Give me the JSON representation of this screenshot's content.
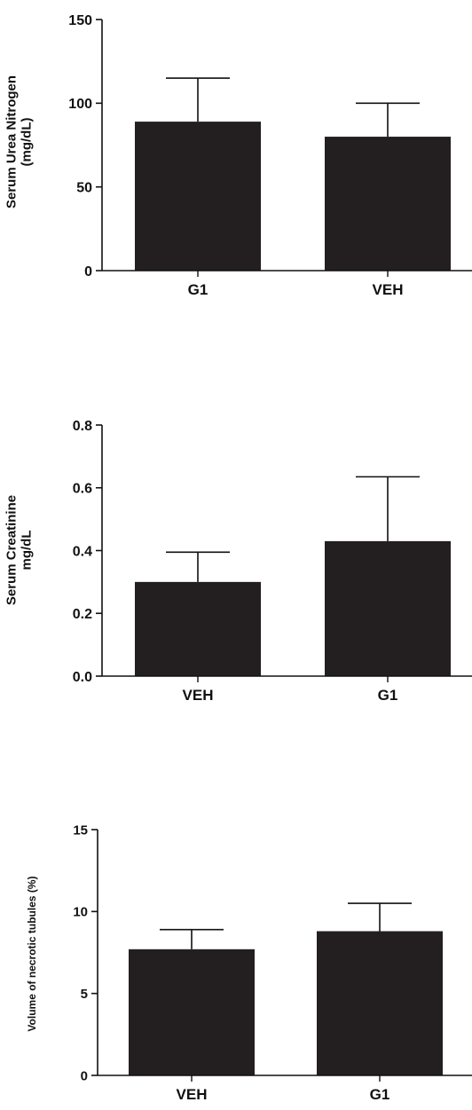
{
  "colors": {
    "bar": "#231f20",
    "axis": "#111111",
    "background": "#ffffff"
  },
  "chart_data": [
    {
      "type": "bar",
      "title": "",
      "ylabel": [
        "Serum Urea Nitrogen",
        "(mg/dL)"
      ],
      "categories": [
        "G1",
        "VEH"
      ],
      "values": [
        89,
        80
      ],
      "errors": [
        26,
        20
      ],
      "ylim": [
        0,
        150
      ],
      "yticks": [
        0,
        50,
        100,
        150
      ],
      "ytick_labels": [
        "0",
        "50",
        "100",
        "150"
      ],
      "grid": false
    },
    {
      "type": "bar",
      "title": "",
      "ylabel": [
        "Serum  Creatinine",
        "mg/dL"
      ],
      "categories": [
        "VEH",
        "G1"
      ],
      "values": [
        0.3,
        0.43
      ],
      "errors": [
        0.095,
        0.205
      ],
      "ylim": [
        0,
        0.8
      ],
      "yticks": [
        0,
        0.2,
        0.4,
        0.6,
        0.8
      ],
      "ytick_labels": [
        "0.0",
        "0.2",
        "0.4",
        "0.6",
        "0.8"
      ],
      "grid": false
    },
    {
      "type": "bar",
      "title": "",
      "ylabel": [
        "Volume of necrotic tubules (%)"
      ],
      "categories": [
        "VEH",
        "G1"
      ],
      "values": [
        7.7,
        8.8
      ],
      "errors": [
        1.2,
        1.7
      ],
      "ylim": [
        0,
        15
      ],
      "yticks": [
        0,
        5,
        10,
        15
      ],
      "ytick_labels": [
        "0",
        "5",
        "10",
        "15"
      ],
      "grid": false
    }
  ]
}
